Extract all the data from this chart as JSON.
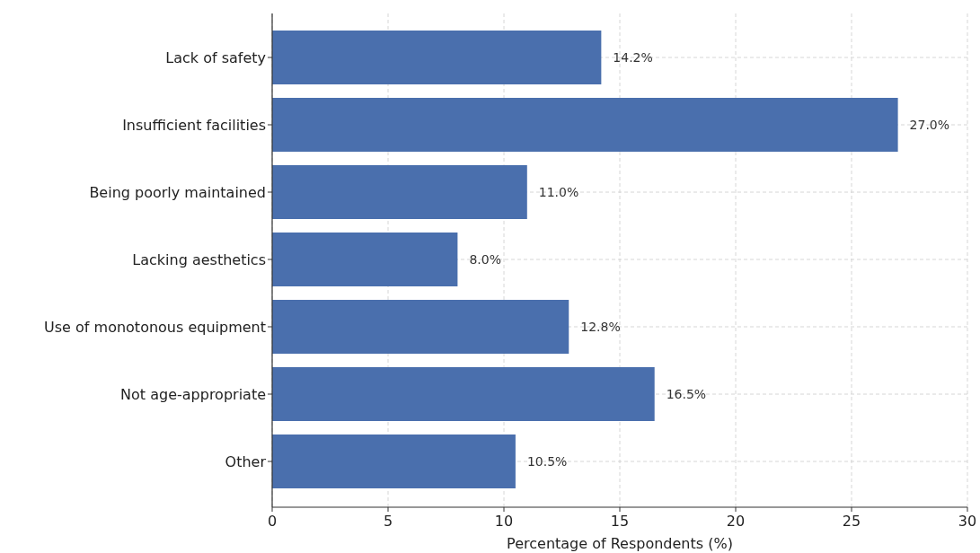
{
  "chart_data": {
    "type": "bar",
    "orientation": "horizontal",
    "xlabel": "Percentage of Respondents (%)",
    "categories": [
      "Lack of safety",
      "Insufficient facilities",
      "Being poorly maintained",
      "Lacking aesthetics",
      "Use of monotonous equipment",
      "Not age-appropriate",
      "Other"
    ],
    "values": [
      14.2,
      27.0,
      11.0,
      8.0,
      12.8,
      16.5,
      10.5
    ],
    "value_labels": [
      "14.2%",
      "27.0%",
      "11.0%",
      "8.0%",
      "12.8%",
      "16.5%",
      "10.5%"
    ],
    "color": "#4a6fad",
    "xlim": [
      0,
      30
    ],
    "xticks": [
      0,
      5,
      10,
      15,
      20,
      25,
      30
    ],
    "grid": true
  }
}
